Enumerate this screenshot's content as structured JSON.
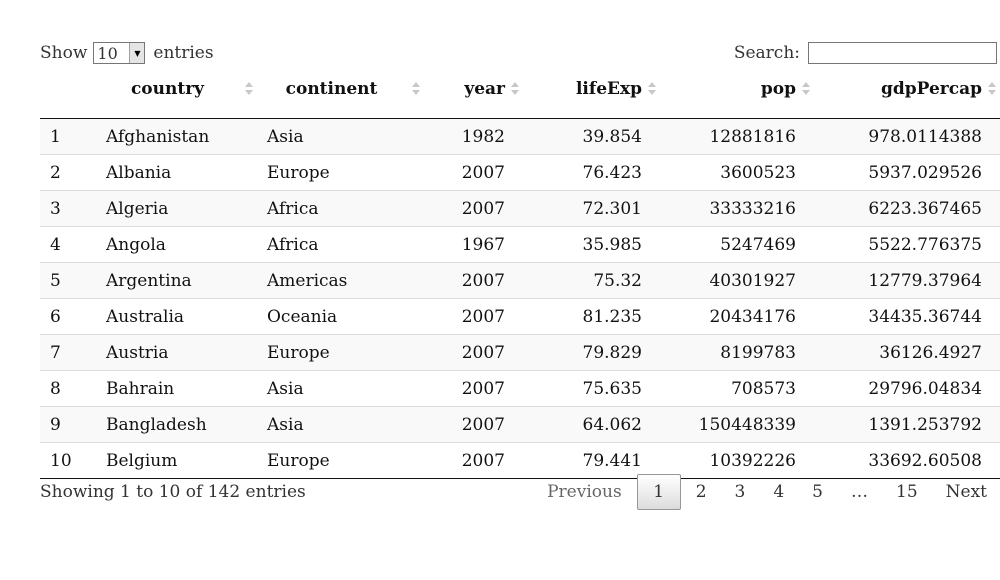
{
  "length_menu": {
    "show_label": "Show",
    "selected": "10",
    "entries_label": "entries"
  },
  "search": {
    "label": "Search:",
    "value": ""
  },
  "columns": [
    "",
    "country",
    "continent",
    "year",
    "lifeExp",
    "pop",
    "gdpPercap"
  ],
  "rows": [
    {
      "idx": "1",
      "country": "Afghanistan",
      "continent": "Asia",
      "year": "1982",
      "lifeExp": "39.854",
      "pop": "12881816",
      "gdpPercap": "978.0114388"
    },
    {
      "idx": "2",
      "country": "Albania",
      "continent": "Europe",
      "year": "2007",
      "lifeExp": "76.423",
      "pop": "3600523",
      "gdpPercap": "5937.029526"
    },
    {
      "idx": "3",
      "country": "Algeria",
      "continent": "Africa",
      "year": "2007",
      "lifeExp": "72.301",
      "pop": "33333216",
      "gdpPercap": "6223.367465"
    },
    {
      "idx": "4",
      "country": "Angola",
      "continent": "Africa",
      "year": "1967",
      "lifeExp": "35.985",
      "pop": "5247469",
      "gdpPercap": "5522.776375"
    },
    {
      "idx": "5",
      "country": "Argentina",
      "continent": "Americas",
      "year": "2007",
      "lifeExp": "75.32",
      "pop": "40301927",
      "gdpPercap": "12779.37964"
    },
    {
      "idx": "6",
      "country": "Australia",
      "continent": "Oceania",
      "year": "2007",
      "lifeExp": "81.235",
      "pop": "20434176",
      "gdpPercap": "34435.36744"
    },
    {
      "idx": "7",
      "country": "Austria",
      "continent": "Europe",
      "year": "2007",
      "lifeExp": "79.829",
      "pop": "8199783",
      "gdpPercap": "36126.4927"
    },
    {
      "idx": "8",
      "country": "Bahrain",
      "continent": "Asia",
      "year": "2007",
      "lifeExp": "75.635",
      "pop": "708573",
      "gdpPercap": "29796.04834"
    },
    {
      "idx": "9",
      "country": "Bangladesh",
      "continent": "Asia",
      "year": "2007",
      "lifeExp": "64.062",
      "pop": "150448339",
      "gdpPercap": "1391.253792"
    },
    {
      "idx": "10",
      "country": "Belgium",
      "continent": "Europe",
      "year": "2007",
      "lifeExp": "79.441",
      "pop": "10392226",
      "gdpPercap": "33692.60508"
    }
  ],
  "info": "Showing 1 to 10 of 142 entries",
  "pagination": {
    "previous": "Previous",
    "pages": [
      "1",
      "2",
      "3",
      "4",
      "5",
      "…",
      "15"
    ],
    "current": "1",
    "next": "Next"
  }
}
